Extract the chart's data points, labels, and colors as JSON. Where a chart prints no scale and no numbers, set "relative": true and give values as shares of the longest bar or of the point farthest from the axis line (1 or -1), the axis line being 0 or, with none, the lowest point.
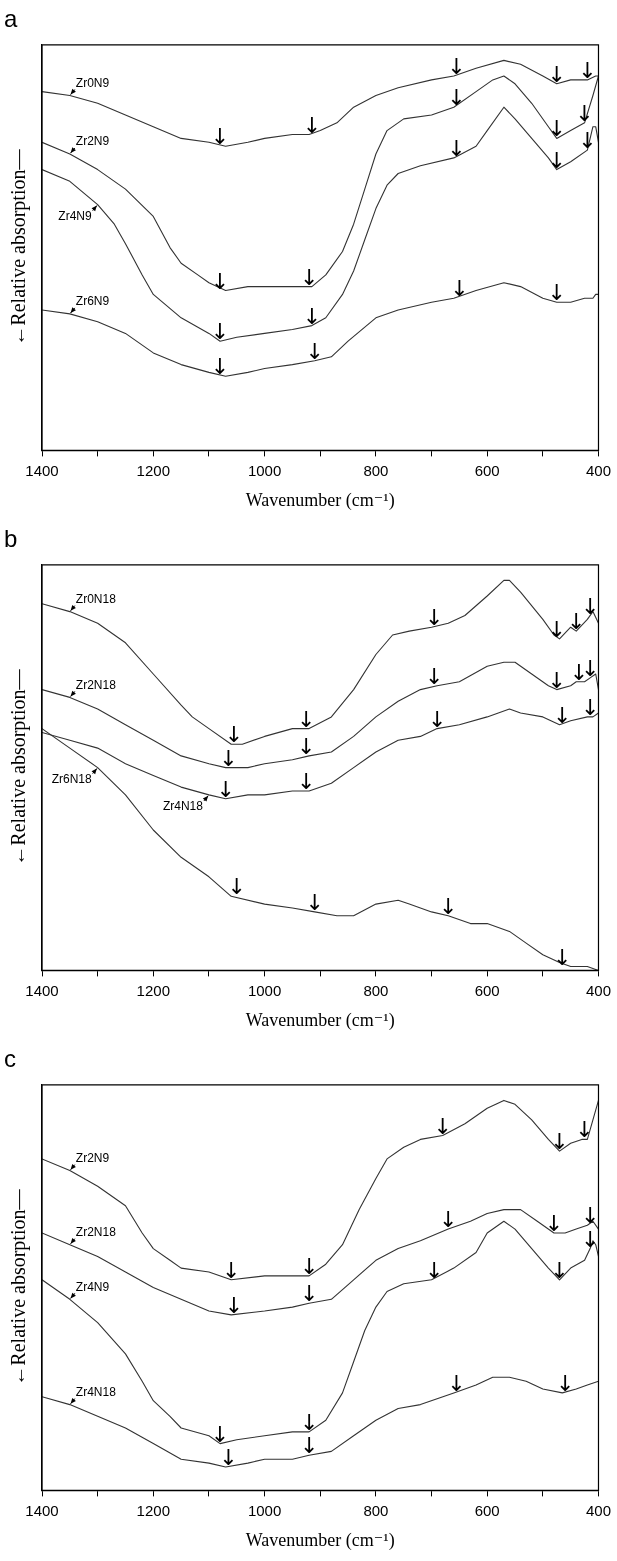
{
  "chart_data": [
    {
      "type": "line",
      "title": "a",
      "xlabel": "Wavenumber (cm⁻¹)",
      "ylabel": "←Relative absorption—",
      "relative": true,
      "xlim": [
        1400,
        400
      ],
      "xticks": [
        1400,
        {
          "value": 1300,
          "label": null
        },
        1200,
        {
          "value": 1100,
          "label": null
        },
        1000,
        {
          "value": 900,
          "label": null
        },
        800,
        {
          "value": 700,
          "label": null
        },
        600,
        {
          "value": 500,
          "label": null
        },
        400
      ],
      "series": [
        {
          "name": "Zr0N9",
          "color": "#333333",
          "x": [
            1400,
            1350,
            1300,
            1250,
            1200,
            1150,
            1100,
            1070,
            1030,
            1000,
            950,
            920,
            900,
            870,
            840,
            800,
            760,
            700,
            660,
            620,
            570,
            540,
            500,
            475,
            450,
            420,
            405,
            400
          ],
          "values": [
            0.92,
            0.91,
            0.89,
            0.86,
            0.83,
            0.8,
            0.79,
            0.78,
            0.79,
            0.8,
            0.81,
            0.81,
            0.82,
            0.84,
            0.88,
            0.91,
            0.93,
            0.95,
            0.96,
            0.98,
            1.0,
            0.99,
            0.96,
            0.94,
            0.95,
            0.95,
            0.96,
            0.96
          ]
        },
        {
          "name": "Zr2N9",
          "color": "#333333",
          "x": [
            1400,
            1350,
            1300,
            1250,
            1200,
            1170,
            1150,
            1120,
            1100,
            1070,
            1030,
            1000,
            950,
            915,
            890,
            860,
            840,
            820,
            800,
            780,
            750,
            700,
            660,
            620,
            590,
            570,
            550,
            520,
            490,
            475,
            450,
            425,
            410,
            400
          ],
          "values": [
            0.79,
            0.76,
            0.72,
            0.67,
            0.6,
            0.52,
            0.48,
            0.45,
            0.43,
            0.41,
            0.42,
            0.42,
            0.42,
            0.42,
            0.45,
            0.51,
            0.58,
            0.67,
            0.76,
            0.82,
            0.85,
            0.86,
            0.88,
            0.92,
            0.95,
            0.96,
            0.94,
            0.89,
            0.83,
            0.8,
            0.82,
            0.84,
            0.91,
            0.96
          ]
        },
        {
          "name": "Zr4N9",
          "color": "#333333",
          "x": [
            1400,
            1350,
            1300,
            1270,
            1250,
            1220,
            1200,
            1150,
            1100,
            1080,
            1050,
            1000,
            950,
            915,
            890,
            860,
            840,
            820,
            800,
            780,
            760,
            720,
            660,
            620,
            600,
            570,
            550,
            520,
            490,
            475,
            450,
            420,
            410,
            405,
            400
          ],
          "values": [
            0.72,
            0.69,
            0.63,
            0.58,
            0.53,
            0.45,
            0.4,
            0.34,
            0.3,
            0.28,
            0.29,
            0.3,
            0.31,
            0.32,
            0.34,
            0.4,
            0.46,
            0.54,
            0.62,
            0.68,
            0.71,
            0.73,
            0.75,
            0.78,
            0.82,
            0.88,
            0.85,
            0.8,
            0.75,
            0.72,
            0.74,
            0.77,
            0.83,
            0.83,
            0.79
          ]
        },
        {
          "name": "Zr6N9",
          "color": "#333333",
          "x": [
            1400,
            1350,
            1300,
            1250,
            1200,
            1150,
            1100,
            1070,
            1030,
            1000,
            950,
            910,
            880,
            850,
            800,
            760,
            700,
            660,
            620,
            570,
            540,
            500,
            475,
            450,
            425,
            410,
            405,
            400
          ],
          "values": [
            0.36,
            0.35,
            0.33,
            0.3,
            0.25,
            0.22,
            0.2,
            0.19,
            0.2,
            0.21,
            0.22,
            0.23,
            0.24,
            0.28,
            0.34,
            0.36,
            0.38,
            0.39,
            0.41,
            0.43,
            0.42,
            0.39,
            0.38,
            0.38,
            0.39,
            0.39,
            0.4,
            0.4
          ]
        }
      ],
      "annotations": [
        {
          "text": "↓",
          "x": 1080,
          "y": 0.78
        },
        {
          "text": "↓",
          "x": 915,
          "y": 0.81
        },
        {
          "text": "↓",
          "x": 655,
          "y": 0.96
        },
        {
          "text": "↓",
          "x": 475,
          "y": 0.94
        },
        {
          "text": "↓",
          "x": 420,
          "y": 0.95
        },
        {
          "text": "↓",
          "x": 1080,
          "y": 0.41
        },
        {
          "text": "↓",
          "x": 920,
          "y": 0.42
        },
        {
          "text": "↓",
          "x": 655,
          "y": 0.88
        },
        {
          "text": "↓",
          "x": 475,
          "y": 0.8
        },
        {
          "text": "↓",
          "x": 425,
          "y": 0.84
        },
        {
          "text": "↓",
          "x": 1080,
          "y": 0.28
        },
        {
          "text": "↓",
          "x": 915,
          "y": 0.32
        },
        {
          "text": "↓",
          "x": 655,
          "y": 0.75
        },
        {
          "text": "↓",
          "x": 475,
          "y": 0.72
        },
        {
          "text": "↓",
          "x": 420,
          "y": 0.77
        },
        {
          "text": "↓",
          "x": 1080,
          "y": 0.19
        },
        {
          "text": "↓",
          "x": 910,
          "y": 0.23
        },
        {
          "text": "↓",
          "x": 650,
          "y": 0.39
        },
        {
          "text": "↓",
          "x": 475,
          "y": 0.38
        }
      ]
    },
    {
      "type": "line",
      "title": "b",
      "xlabel": "Wavenumber (cm⁻¹)",
      "ylabel": "←Relative absorption—",
      "relative": true,
      "xlim": [
        1400,
        400
      ],
      "xticks": [
        1400,
        {
          "value": 1300,
          "label": null
        },
        1200,
        {
          "value": 1100,
          "label": null
        },
        1000,
        {
          "value": 900,
          "label": null
        },
        800,
        {
          "value": 700,
          "label": null
        },
        600,
        {
          "value": 500,
          "label": null
        },
        400
      ],
      "series": [
        {
          "name": "Zr0N18",
          "color": "#333333",
          "x": [
            1400,
            1350,
            1300,
            1250,
            1200,
            1150,
            1130,
            1100,
            1060,
            1040,
            1000,
            950,
            920,
            880,
            840,
            800,
            770,
            740,
            700,
            670,
            640,
            600,
            570,
            560,
            540,
            500,
            480,
            470,
            450,
            440,
            420,
            410,
            400
          ],
          "values": [
            0.94,
            0.92,
            0.89,
            0.84,
            0.76,
            0.68,
            0.65,
            0.62,
            0.58,
            0.58,
            0.6,
            0.62,
            0.62,
            0.65,
            0.72,
            0.81,
            0.86,
            0.87,
            0.88,
            0.89,
            0.91,
            0.96,
            1.0,
            1.0,
            0.97,
            0.9,
            0.86,
            0.85,
            0.88,
            0.87,
            0.9,
            0.92,
            0.89
          ]
        },
        {
          "name": "Zr2N18",
          "color": "#333333",
          "x": [
            1400,
            1350,
            1300,
            1250,
            1200,
            1150,
            1100,
            1070,
            1030,
            1000,
            950,
            920,
            880,
            840,
            800,
            760,
            720,
            690,
            650,
            600,
            570,
            550,
            520,
            490,
            475,
            450,
            440,
            425,
            415,
            405,
            400
          ],
          "values": [
            0.72,
            0.7,
            0.67,
            0.63,
            0.59,
            0.55,
            0.53,
            0.52,
            0.52,
            0.53,
            0.54,
            0.55,
            0.56,
            0.6,
            0.65,
            0.69,
            0.72,
            0.73,
            0.74,
            0.78,
            0.79,
            0.79,
            0.76,
            0.73,
            0.72,
            0.73,
            0.74,
            0.74,
            0.75,
            0.76,
            0.72
          ]
        },
        {
          "name": "Zr4N18",
          "color": "#333333",
          "x": [
            1400,
            1350,
            1300,
            1250,
            1200,
            1150,
            1100,
            1070,
            1030,
            1000,
            950,
            920,
            880,
            840,
            800,
            760,
            720,
            690,
            650,
            600,
            560,
            540,
            500,
            470,
            450,
            420,
            410,
            400
          ],
          "values": [
            0.61,
            0.59,
            0.57,
            0.53,
            0.5,
            0.47,
            0.45,
            0.44,
            0.45,
            0.45,
            0.46,
            0.46,
            0.48,
            0.52,
            0.56,
            0.59,
            0.6,
            0.62,
            0.63,
            0.65,
            0.67,
            0.66,
            0.65,
            0.63,
            0.64,
            0.65,
            0.65,
            0.66
          ]
        },
        {
          "name": "Zr6N18",
          "color": "#333333",
          "x": [
            1400,
            1350,
            1300,
            1250,
            1200,
            1150,
            1100,
            1060,
            1000,
            950,
            910,
            870,
            840,
            800,
            760,
            740,
            700,
            670,
            630,
            600,
            560,
            530,
            500,
            470,
            450,
            420,
            400
          ],
          "values": [
            0.62,
            0.57,
            0.52,
            0.45,
            0.36,
            0.29,
            0.24,
            0.19,
            0.17,
            0.16,
            0.15,
            0.14,
            0.14,
            0.17,
            0.18,
            0.17,
            0.15,
            0.14,
            0.12,
            0.12,
            0.1,
            0.07,
            0.04,
            0.02,
            0.01,
            0.01,
            0.0
          ]
        }
      ],
      "annotations": [
        {
          "text": "↓",
          "x": 1055,
          "y": 0.58
        },
        {
          "text": "↓",
          "x": 925,
          "y": 0.62
        },
        {
          "text": "↓",
          "x": 695,
          "y": 0.88
        },
        {
          "text": "↓",
          "x": 475,
          "y": 0.85
        },
        {
          "text": "↓",
          "x": 440,
          "y": 0.87
        },
        {
          "text": "↓",
          "x": 415,
          "y": 0.91
        },
        {
          "text": "↓",
          "x": 1065,
          "y": 0.52
        },
        {
          "text": "↓",
          "x": 925,
          "y": 0.55
        },
        {
          "text": "↓",
          "x": 695,
          "y": 0.73
        },
        {
          "text": "↓",
          "x": 475,
          "y": 0.72
        },
        {
          "text": "↓",
          "x": 435,
          "y": 0.74
        },
        {
          "text": "↓",
          "x": 415,
          "y": 0.75
        },
        {
          "text": "↓",
          "x": 1070,
          "y": 0.44
        },
        {
          "text": "↓",
          "x": 925,
          "y": 0.46
        },
        {
          "text": "↓",
          "x": 690,
          "y": 0.62
        },
        {
          "text": "↓",
          "x": 465,
          "y": 0.63
        },
        {
          "text": "↓",
          "x": 415,
          "y": 0.65
        },
        {
          "text": "↓",
          "x": 1050,
          "y": 0.19
        },
        {
          "text": "↓",
          "x": 910,
          "y": 0.15
        },
        {
          "text": "↓",
          "x": 670,
          "y": 0.14
        },
        {
          "text": "↓",
          "x": 465,
          "y": 0.01
        }
      ]
    },
    {
      "type": "line",
      "title": "c",
      "xlabel": "Wavenumber (cm⁻¹)",
      "ylabel": "←Relative absorption—",
      "relative": true,
      "xlim": [
        1400,
        400
      ],
      "xticks": [
        1400,
        {
          "value": 1300,
          "label": null
        },
        1200,
        {
          "value": 1100,
          "label": null
        },
        1000,
        {
          "value": 900,
          "label": null
        },
        800,
        {
          "value": 700,
          "label": null
        },
        600,
        {
          "value": 500,
          "label": null
        },
        400
      ],
      "series": [
        {
          "name": "Zr2N9",
          "color": "#333333",
          "x": [
            1400,
            1350,
            1300,
            1250,
            1220,
            1200,
            1170,
            1150,
            1100,
            1060,
            1000,
            950,
            920,
            890,
            860,
            830,
            800,
            780,
            750,
            720,
            680,
            640,
            600,
            570,
            550,
            520,
            490,
            470,
            450,
            430,
            420,
            410,
            400
          ],
          "values": [
            0.85,
            0.82,
            0.78,
            0.73,
            0.66,
            0.62,
            0.59,
            0.57,
            0.56,
            0.54,
            0.55,
            0.55,
            0.55,
            0.58,
            0.63,
            0.72,
            0.8,
            0.85,
            0.88,
            0.9,
            0.91,
            0.94,
            0.98,
            1.0,
            0.99,
            0.95,
            0.9,
            0.87,
            0.89,
            0.9,
            0.9,
            0.95,
            1.0
          ]
        },
        {
          "name": "Zr2N18",
          "color": "#333333",
          "x": [
            1400,
            1350,
            1300,
            1250,
            1200,
            1150,
            1100,
            1060,
            1000,
            950,
            920,
            880,
            840,
            800,
            760,
            720,
            670,
            630,
            600,
            570,
            540,
            510,
            480,
            460,
            440,
            420,
            410,
            400
          ],
          "values": [
            0.66,
            0.63,
            0.6,
            0.56,
            0.52,
            0.49,
            0.46,
            0.45,
            0.46,
            0.47,
            0.48,
            0.49,
            0.54,
            0.59,
            0.62,
            0.64,
            0.67,
            0.69,
            0.71,
            0.72,
            0.72,
            0.69,
            0.66,
            0.66,
            0.67,
            0.68,
            0.69,
            0.67
          ]
        },
        {
          "name": "Zr4N9",
          "color": "#333333",
          "x": [
            1400,
            1350,
            1300,
            1250,
            1220,
            1200,
            1170,
            1150,
            1100,
            1080,
            1050,
            1000,
            950,
            920,
            890,
            860,
            840,
            820,
            800,
            780,
            750,
            700,
            660,
            620,
            600,
            570,
            550,
            520,
            490,
            470,
            450,
            425,
            415,
            410,
            405,
            400
          ],
          "values": [
            0.54,
            0.49,
            0.43,
            0.35,
            0.28,
            0.23,
            0.19,
            0.16,
            0.14,
            0.12,
            0.13,
            0.14,
            0.15,
            0.15,
            0.18,
            0.25,
            0.33,
            0.41,
            0.47,
            0.51,
            0.53,
            0.54,
            0.57,
            0.61,
            0.66,
            0.69,
            0.67,
            0.62,
            0.57,
            0.54,
            0.57,
            0.59,
            0.62,
            0.64,
            0.63,
            0.6
          ]
        },
        {
          "name": "Zr4N18",
          "color": "#333333",
          "x": [
            1400,
            1350,
            1300,
            1250,
            1200,
            1150,
            1100,
            1070,
            1030,
            1000,
            950,
            920,
            880,
            840,
            800,
            760,
            720,
            660,
            620,
            590,
            560,
            530,
            500,
            465,
            440,
            420,
            400
          ],
          "values": [
            0.24,
            0.22,
            0.19,
            0.16,
            0.12,
            0.08,
            0.07,
            0.06,
            0.07,
            0.08,
            0.08,
            0.09,
            0.1,
            0.14,
            0.18,
            0.21,
            0.22,
            0.25,
            0.27,
            0.29,
            0.29,
            0.28,
            0.26,
            0.25,
            0.26,
            0.27,
            0.28
          ]
        }
      ],
      "annotations": [
        {
          "text": "↓",
          "x": 1060,
          "y": 0.54
        },
        {
          "text": "↓",
          "x": 920,
          "y": 0.55
        },
        {
          "text": "↓",
          "x": 680,
          "y": 0.91
        },
        {
          "text": "↓",
          "x": 470,
          "y": 0.87
        },
        {
          "text": "↓",
          "x": 425,
          "y": 0.9
        },
        {
          "text": "↓",
          "x": 1055,
          "y": 0.45
        },
        {
          "text": "↓",
          "x": 920,
          "y": 0.48
        },
        {
          "text": "↓",
          "x": 670,
          "y": 0.67
        },
        {
          "text": "↓",
          "x": 480,
          "y": 0.66
        },
        {
          "text": "↓",
          "x": 415,
          "y": 0.68
        },
        {
          "text": "↓",
          "x": 1080,
          "y": 0.12
        },
        {
          "text": "↓",
          "x": 920,
          "y": 0.15
        },
        {
          "text": "↓",
          "x": 695,
          "y": 0.54
        },
        {
          "text": "↓",
          "x": 470,
          "y": 0.54
        },
        {
          "text": "↓",
          "x": 415,
          "y": 0.62
        },
        {
          "text": "↓",
          "x": 1065,
          "y": 0.06
        },
        {
          "text": "↓",
          "x": 920,
          "y": 0.09
        },
        {
          "text": "↓",
          "x": 655,
          "y": 0.25
        },
        {
          "text": "↓",
          "x": 460,
          "y": 0.25
        }
      ]
    }
  ]
}
